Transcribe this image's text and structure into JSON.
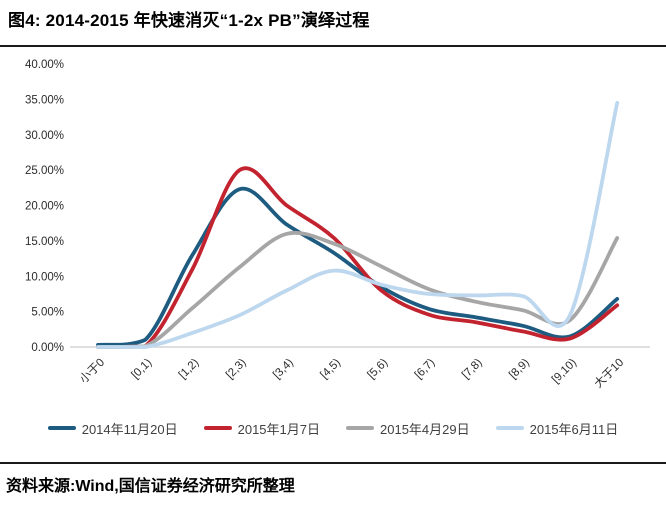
{
  "header": {
    "title": "图4: 2014-2015 年快速消灭“1-2x PB”演绎过程"
  },
  "footer": {
    "source": "资料来源:Wind,国信证券经济研究所整理"
  },
  "chart_data": {
    "type": "line",
    "title": "2014-2015 年快速消灭“1-2x PB”演绎过程",
    "xlabel": "",
    "ylabel": "",
    "unit": "%",
    "grid": false,
    "legend_position": "bottom",
    "ylim": [
      0,
      40
    ],
    "ytick_step": 5,
    "ytick_labels": [
      "0.00%",
      "5.00%",
      "10.00%",
      "15.00%",
      "20.00%",
      "25.00%",
      "30.00%",
      "35.00%",
      "40.00%"
    ],
    "categories": [
      "小于0",
      "[0,1)",
      "[1,2)",
      "[2,3)",
      "[3,4)",
      "[4,5)",
      "[5,6)",
      "[6,7)",
      "[7,8)",
      "[8,9)",
      "[9,10)",
      "大于10"
    ],
    "series": [
      {
        "name": "2014年11月20日",
        "color": "#1e5b80",
        "values": [
          0.3,
          1.0,
          13.0,
          22.3,
          17.3,
          13.3,
          8.5,
          5.4,
          4.2,
          3.0,
          1.5,
          6.8
        ]
      },
      {
        "name": "2015年1月7日",
        "color": "#c2232e",
        "values": [
          0.0,
          0.1,
          11.0,
          25.0,
          20.0,
          15.4,
          8.0,
          4.6,
          3.5,
          2.2,
          1.2,
          5.9
        ]
      },
      {
        "name": "2015年4月29日",
        "color": "#a6a6a6",
        "values": [
          0.0,
          0.1,
          5.5,
          11.3,
          16.0,
          14.6,
          11.4,
          8.2,
          6.4,
          5.2,
          3.8,
          15.4
        ]
      },
      {
        "name": "2015年6月11日",
        "color": "#bdd7ee",
        "values": [
          0.0,
          0.0,
          2.0,
          4.5,
          8.0,
          10.8,
          8.8,
          7.5,
          7.3,
          7.2,
          4.5,
          34.5
        ]
      }
    ],
    "axis_color": "#cccccc",
    "tick_label_color": "#2b2b2b"
  }
}
